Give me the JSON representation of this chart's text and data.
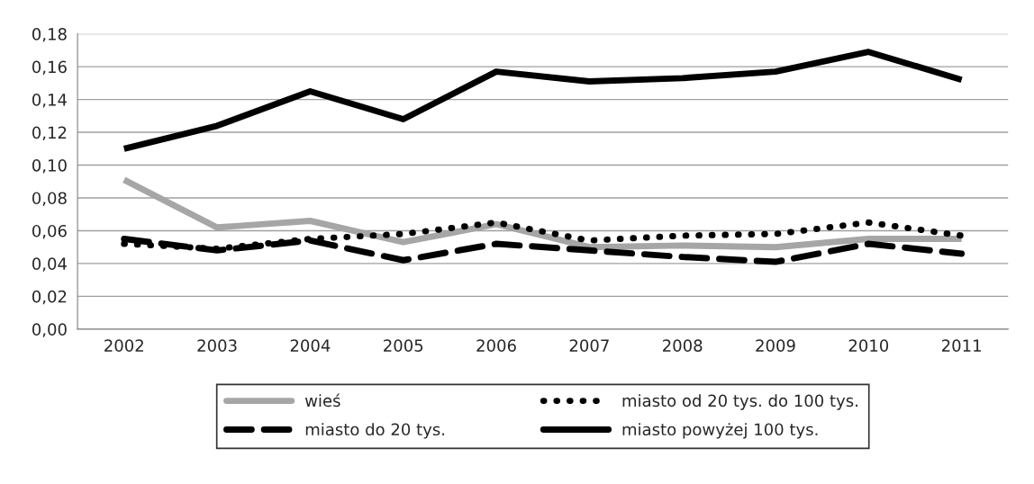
{
  "chart_data": {
    "type": "line",
    "categories": [
      "2002",
      "2003",
      "2004",
      "2005",
      "2006",
      "2007",
      "2008",
      "2009",
      "2010",
      "2011"
    ],
    "series": [
      {
        "name": "wieś",
        "color": "#a6a6a6",
        "line_style": "solid",
        "values": [
          0.091,
          0.062,
          0.066,
          0.053,
          0.064,
          0.05,
          0.051,
          0.05,
          0.055,
          0.055
        ]
      },
      {
        "name": "miasto do 20 tys.",
        "color": "#000000",
        "line_style": "dashed",
        "values": [
          0.055,
          0.048,
          0.054,
          0.042,
          0.052,
          0.048,
          0.044,
          0.041,
          0.052,
          0.046
        ]
      },
      {
        "name": "miasto od 20 tys. do 100 tys.",
        "color": "#000000",
        "line_style": "dotted",
        "values": [
          0.052,
          0.049,
          0.055,
          0.058,
          0.065,
          0.054,
          0.057,
          0.058,
          0.065,
          0.057
        ]
      },
      {
        "name": "miasto powyżej 100 tys.",
        "color": "#000000",
        "line_style": "solid",
        "values": [
          0.11,
          0.124,
          0.145,
          0.128,
          0.157,
          0.151,
          0.153,
          0.157,
          0.169,
          0.152
        ]
      }
    ],
    "ylim": [
      0,
      0.18
    ],
    "yticks": [
      {
        "value": 0,
        "label": "0,00"
      },
      {
        "value": 0.02,
        "label": "0,02"
      },
      {
        "value": 0.04,
        "label": "0,04"
      },
      {
        "value": 0.06,
        "label": "0,06"
      },
      {
        "value": 0.08,
        "label": "0,08"
      },
      {
        "value": 0.1,
        "label": "0,10"
      },
      {
        "value": 0.12,
        "label": "0,12"
      },
      {
        "value": 0.14,
        "label": "0,14"
      },
      {
        "value": 0.16,
        "label": "0,16"
      },
      {
        "value": 0.18,
        "label": "0,18"
      }
    ],
    "grid": "y",
    "legend": "bottom",
    "marker": "none"
  }
}
